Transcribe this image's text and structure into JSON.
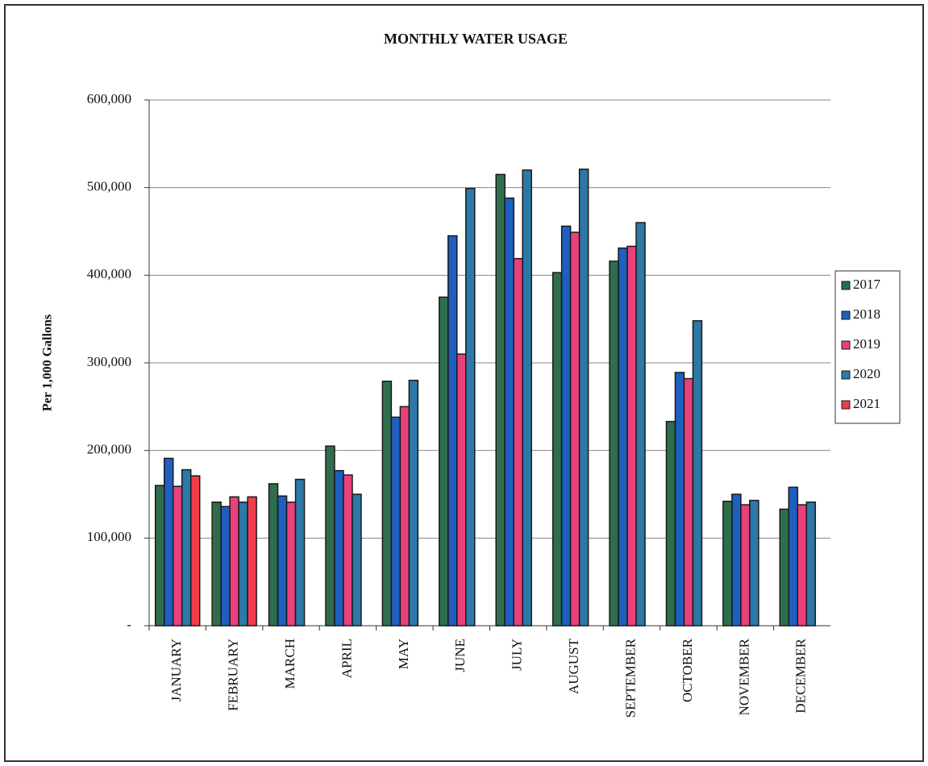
{
  "chart_data": {
    "type": "bar",
    "title": "MONTHLY WATER USAGE",
    "y_label": "Per 1,000 Gallons",
    "categories": [
      "JANUARY",
      "FEBRUARY",
      "MARCH",
      "APRIL",
      "MAY",
      "JUNE",
      "JULY",
      "AUGUST",
      "SEPTEMBER",
      "OCTOBER",
      "NOVEMBER",
      "DECEMBER"
    ],
    "series": [
      {
        "name": "2017",
        "color": "#2f6e4c",
        "values": [
          160000,
          141000,
          162000,
          205000,
          279000,
          375000,
          515000,
          403000,
          416000,
          233000,
          142000,
          133000
        ]
      },
      {
        "name": "2018",
        "color": "#1e5fc0",
        "values": [
          191000,
          136000,
          148000,
          177000,
          238000,
          445000,
          488000,
          456000,
          431000,
          289000,
          150000,
          158000
        ]
      },
      {
        "name": "2019",
        "color": "#e8417c",
        "values": [
          159000,
          147000,
          141000,
          172000,
          250000,
          310000,
          419000,
          449000,
          433000,
          282000,
          138000,
          138000
        ]
      },
      {
        "name": "2020",
        "color": "#2c79a8",
        "values": [
          178000,
          141000,
          167000,
          150000,
          280000,
          499000,
          520000,
          521000,
          460000,
          348000,
          143000,
          141000
        ]
      },
      {
        "name": "2021",
        "color": "#f23b4b",
        "values": [
          171000,
          147000,
          null,
          null,
          null,
          null,
          null,
          null,
          null,
          null,
          null,
          null
        ]
      }
    ],
    "ylim": [
      0,
      600000
    ],
    "yticks": [
      {
        "value": 0,
        "label": "-"
      },
      {
        "value": 100000,
        "label": "100,000"
      },
      {
        "value": 200000,
        "label": "200,000"
      },
      {
        "value": 300000,
        "label": "300,000"
      },
      {
        "value": 400000,
        "label": "400,000"
      },
      {
        "value": 500000,
        "label": "500,000"
      },
      {
        "value": 600000,
        "label": "600,000"
      }
    ],
    "grid": true,
    "legend": "right"
  }
}
